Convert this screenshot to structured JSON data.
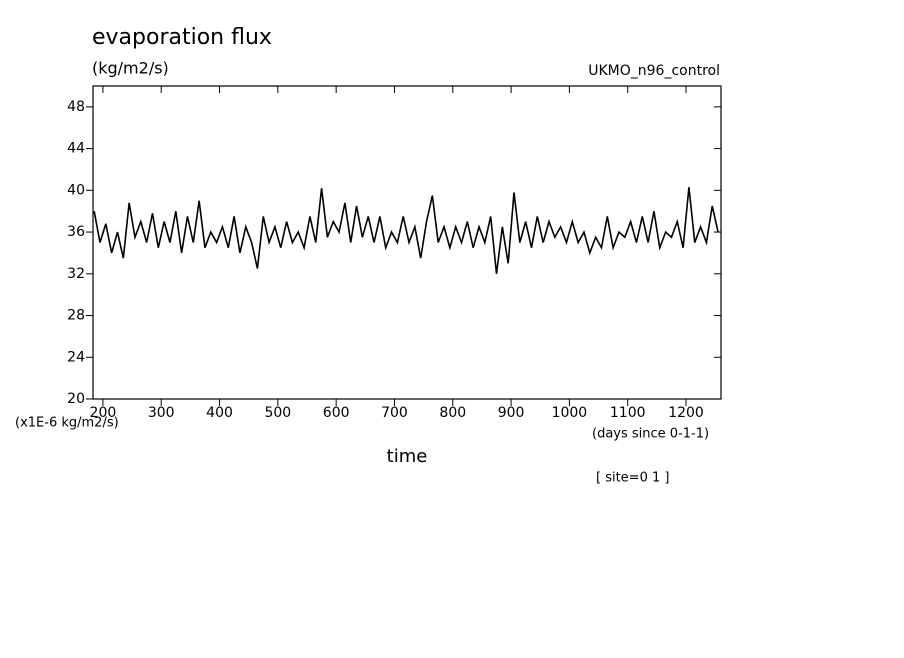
{
  "chart_data": {
    "type": "line",
    "title": "evaporation flux",
    "subtitle": "(kg/m2/s)",
    "dataset_label": "UKMO_n96_control",
    "y_units_label": "(x1E-6 kg/m2/s)",
    "xlabel": "time",
    "x_units_label": "(days since 0-1-1)",
    "site_label": "[ site=0 1 ]",
    "color": "#000000",
    "xlim": [
      183,
      1260
    ],
    "ylim": [
      20,
      50
    ],
    "xticks": [
      200,
      300,
      400,
      500,
      600,
      700,
      800,
      900,
      1000,
      1100,
      1200
    ],
    "yticks": [
      20,
      24,
      28,
      32,
      36,
      40,
      44,
      48
    ],
    "x": [
      185,
      195,
      205,
      215,
      225,
      235,
      245,
      255,
      265,
      275,
      285,
      295,
      305,
      315,
      325,
      335,
      345,
      355,
      365,
      375,
      385,
      395,
      405,
      415,
      425,
      435,
      445,
      455,
      465,
      475,
      485,
      495,
      505,
      515,
      525,
      535,
      545,
      555,
      565,
      575,
      585,
      595,
      605,
      615,
      625,
      635,
      645,
      655,
      665,
      675,
      685,
      695,
      705,
      715,
      725,
      735,
      745,
      755,
      765,
      775,
      785,
      795,
      805,
      815,
      825,
      835,
      845,
      855,
      865,
      875,
      885,
      895,
      905,
      915,
      925,
      935,
      945,
      955,
      965,
      975,
      985,
      995,
      1005,
      1015,
      1025,
      1035,
      1045,
      1055,
      1065,
      1075,
      1085,
      1095,
      1105,
      1115,
      1125,
      1135,
      1145,
      1155,
      1165,
      1175,
      1185,
      1195,
      1205,
      1215,
      1225,
      1235,
      1245,
      1255
    ],
    "values": [
      38,
      35,
      36.8,
      34,
      36,
      33.5,
      38.8,
      35.5,
      37,
      35,
      37.8,
      34.5,
      37,
      35,
      38,
      34,
      37.5,
      35,
      39,
      34.5,
      36,
      35,
      36.5,
      34.5,
      37.5,
      34,
      36.5,
      35,
      32.5,
      37.5,
      35,
      36.5,
      34.5,
      37,
      35,
      36,
      34.5,
      37.5,
      35,
      40.2,
      35.5,
      37,
      36,
      38.8,
      35,
      38.5,
      35.5,
      37.5,
      35,
      37.5,
      34.5,
      36,
      35,
      37.5,
      35,
      36.5,
      33.5,
      37,
      39.5,
      35,
      36.5,
      34.5,
      36.5,
      35,
      37,
      34.5,
      36.5,
      35,
      37.5,
      32,
      36.5,
      33,
      39.8,
      35,
      37,
      34.5,
      37.5,
      35,
      37,
      35.5,
      36.5,
      35,
      37,
      35,
      36,
      34,
      35.5,
      34.5,
      37.5,
      34.5,
      36,
      35.5,
      37,
      35,
      37.5,
      35,
      38,
      34.5,
      36,
      35.5,
      37,
      34.5,
      40.3,
      35,
      36.5,
      35,
      38.5,
      36
    ]
  }
}
